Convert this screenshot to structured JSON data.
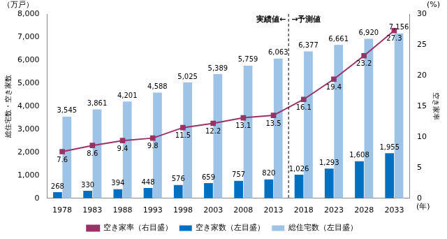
{
  "chart_data": {
    "type": "bar",
    "categories": [
      "1978",
      "1983",
      "1988",
      "1993",
      "1998",
      "2003",
      "2008",
      "2013",
      "2018",
      "2023",
      "2028",
      "2033"
    ],
    "series": [
      {
        "name": "空き家数（左目盛）",
        "type": "bar",
        "axis": "y",
        "color": "#0070c0",
        "values": [
          268,
          330,
          394,
          448,
          576,
          659,
          757,
          820,
          1026,
          1293,
          1608,
          1955
        ],
        "value_labels": [
          "268",
          "330",
          "394",
          "448",
          "576",
          "659",
          "757",
          "820",
          "1,026",
          "1,293",
          "1,608",
          "1,955"
        ]
      },
      {
        "name": "総住宅数（左目盛）",
        "type": "bar",
        "axis": "y",
        "color": "#9dc3e6",
        "values": [
          3545,
          3861,
          4201,
          4588,
          5025,
          5389,
          5759,
          6063,
          6377,
          6661,
          6920,
          7156
        ],
        "value_labels": [
          "3,545",
          "3,861",
          "4,201",
          "4,588",
          "5,025",
          "5,389",
          "5,759",
          "6,063",
          "6,377",
          "6,661",
          "6,920",
          "7,156"
        ]
      },
      {
        "name": "空き家率（右目盛）",
        "type": "line",
        "axis": "y2",
        "color": "#993366",
        "marker": "square",
        "values": [
          7.6,
          8.6,
          9.4,
          9.8,
          11.5,
          12.2,
          13.1,
          13.5,
          16.1,
          19.4,
          23.2,
          27.3
        ]
      }
    ],
    "ylabel": "総住宅数・空き家数",
    "y2label": "空き家率",
    "yunit": "（万戸）",
    "y2unit": "(%)",
    "xunit": "(年)",
    "annotations": [
      {
        "text": "実績値←",
        "x": "2013"
      },
      {
        "text": "→予測値",
        "x": "2018"
      }
    ],
    "ylim": [
      0,
      8000
    ],
    "yticks": [
      0,
      {
        "value": 1000,
        "label": "1,000"
      },
      {
        "value": 2000,
        "label": "2,000"
      },
      {
        "value": 3000,
        "label": "3,000"
      },
      {
        "value": 4000,
        "label": "4,000"
      },
      {
        "value": 5000,
        "label": "5,000"
      },
      {
        "value": 6000,
        "label": "6,000"
      },
      {
        "value": 7000,
        "label": "7,000"
      },
      {
        "value": 8000,
        "label": "8,000"
      }
    ],
    "y2lim": [
      0,
      30
    ],
    "y2ticks": [
      0,
      5,
      10,
      15,
      20,
      25,
      30
    ],
    "grid": false,
    "legend": "bottom",
    "data_labels": true
  }
}
